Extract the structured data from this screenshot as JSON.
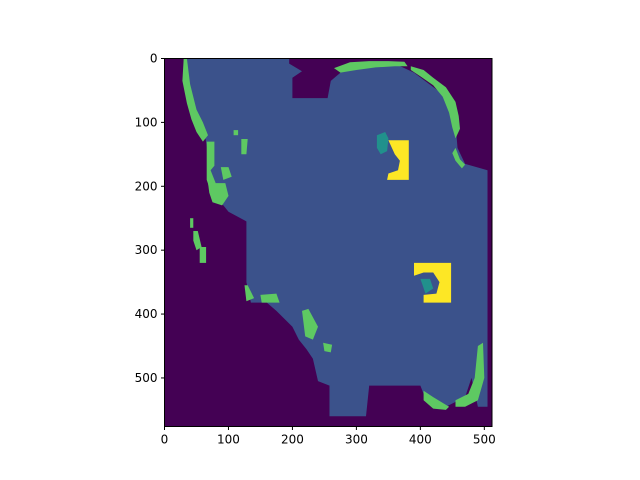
{
  "chart_data": {
    "type": "heatmap",
    "title": "",
    "xlabel": "",
    "ylabel": "",
    "xlim": [
      0,
      512
    ],
    "ylim": [
      576,
      0
    ],
    "xticks": [
      0,
      100,
      200,
      300,
      400,
      500
    ],
    "yticks": [
      0,
      100,
      200,
      300,
      400,
      500
    ],
    "grid": false,
    "colormap": "viridis",
    "classes": [
      {
        "value": 0,
        "color": "#440154"
      },
      {
        "value": 1,
        "color": "#3b528b"
      },
      {
        "value": 2,
        "color": "#21918c"
      },
      {
        "value": 3,
        "color": "#5ec962"
      },
      {
        "value": 4,
        "color": "#fde725"
      }
    ],
    "regions": [
      {
        "class": 1,
        "points": [
          [
            30,
            0
          ],
          [
            195,
            0
          ],
          [
            195,
            8
          ],
          [
            215,
            20
          ],
          [
            200,
            30
          ],
          [
            200,
            62
          ],
          [
            255,
            62
          ],
          [
            260,
            35
          ],
          [
            280,
            18
          ],
          [
            310,
            12
          ],
          [
            360,
            8
          ],
          [
            390,
            22
          ],
          [
            430,
            52
          ],
          [
            450,
            70
          ],
          [
            455,
            100
          ],
          [
            458,
            140
          ],
          [
            470,
            165
          ],
          [
            505,
            175
          ],
          [
            505,
            545
          ],
          [
            490,
            545
          ],
          [
            480,
            500
          ],
          [
            470,
            530
          ],
          [
            440,
            545
          ],
          [
            420,
            540
          ],
          [
            405,
            525
          ],
          [
            400,
            512
          ],
          [
            320,
            512
          ],
          [
            315,
            560
          ],
          [
            258,
            560
          ],
          [
            258,
            512
          ],
          [
            240,
            505
          ],
          [
            232,
            470
          ],
          [
            222,
            455
          ],
          [
            210,
            440
          ],
          [
            200,
            420
          ],
          [
            175,
            395
          ],
          [
            160,
            382
          ],
          [
            135,
            382
          ],
          [
            128,
            350
          ],
          [
            128,
            255
          ],
          [
            100,
            240
          ],
          [
            80,
            215
          ],
          [
            75,
            200
          ],
          [
            70,
            165
          ],
          [
            65,
            130
          ],
          [
            58,
            100
          ],
          [
            45,
            85
          ],
          [
            32,
            35
          ],
          [
            30,
            10
          ]
        ]
      },
      {
        "class": 3,
        "points": [
          [
            30,
            0
          ],
          [
            35,
            0
          ],
          [
            40,
            40
          ],
          [
            50,
            80
          ],
          [
            60,
            100
          ],
          [
            68,
            120
          ],
          [
            60,
            130
          ],
          [
            50,
            115
          ],
          [
            42,
            95
          ],
          [
            35,
            70
          ],
          [
            28,
            35
          ]
        ]
      },
      {
        "class": 3,
        "points": [
          [
            265,
            15
          ],
          [
            290,
            6
          ],
          [
            320,
            4
          ],
          [
            350,
            4
          ],
          [
            375,
            5
          ],
          [
            380,
            12
          ],
          [
            360,
            12
          ],
          [
            330,
            14
          ],
          [
            300,
            18
          ],
          [
            275,
            22
          ]
        ]
      },
      {
        "class": 3,
        "points": [
          [
            385,
            12
          ],
          [
            405,
            18
          ],
          [
            420,
            30
          ],
          [
            440,
            45
          ],
          [
            455,
            68
          ],
          [
            460,
            90
          ],
          [
            462,
            110
          ],
          [
            455,
            125
          ],
          [
            450,
            108
          ],
          [
            445,
            85
          ],
          [
            435,
            60
          ],
          [
            420,
            42
          ],
          [
            400,
            28
          ],
          [
            385,
            18
          ]
        ]
      },
      {
        "class": 3,
        "points": [
          [
            455,
            140
          ],
          [
            462,
            158
          ],
          [
            470,
            166
          ],
          [
            465,
            172
          ],
          [
            455,
            160
          ],
          [
            450,
            148
          ]
        ]
      },
      {
        "class": 3,
        "points": [
          [
            66,
            130
          ],
          [
            78,
            130
          ],
          [
            78,
            168
          ],
          [
            72,
            175
          ],
          [
            80,
            195
          ],
          [
            72,
            208
          ],
          [
            66,
            190
          ],
          [
            66,
            160
          ]
        ]
      },
      {
        "class": 3,
        "points": [
          [
            108,
            112
          ],
          [
            115,
            112
          ],
          [
            115,
            120
          ],
          [
            108,
            120
          ]
        ]
      },
      {
        "class": 3,
        "points": [
          [
            120,
            126
          ],
          [
            130,
            126
          ],
          [
            128,
            150
          ],
          [
            120,
            150
          ]
        ]
      },
      {
        "class": 3,
        "points": [
          [
            88,
            170
          ],
          [
            100,
            170
          ],
          [
            105,
            185
          ],
          [
            92,
            190
          ]
        ]
      },
      {
        "class": 3,
        "points": [
          [
            68,
            195
          ],
          [
            95,
            195
          ],
          [
            100,
            215
          ],
          [
            90,
            230
          ],
          [
            75,
            225
          ],
          [
            70,
            210
          ]
        ]
      },
      {
        "class": 3,
        "points": [
          [
            40,
            250
          ],
          [
            45,
            250
          ],
          [
            45,
            265
          ],
          [
            40,
            265
          ]
        ]
      },
      {
        "class": 3,
        "points": [
          [
            45,
            270
          ],
          [
            52,
            270
          ],
          [
            58,
            295
          ],
          [
            50,
            300
          ],
          [
            45,
            285
          ]
        ]
      },
      {
        "class": 3,
        "points": [
          [
            55,
            295
          ],
          [
            65,
            295
          ],
          [
            65,
            320
          ],
          [
            55,
            320
          ]
        ]
      },
      {
        "class": 3,
        "points": [
          [
            125,
            355
          ],
          [
            130,
            355
          ],
          [
            140,
            375
          ],
          [
            128,
            380
          ]
        ]
      },
      {
        "class": 3,
        "points": [
          [
            150,
            370
          ],
          [
            175,
            368
          ],
          [
            180,
            382
          ],
          [
            152,
            382
          ]
        ]
      },
      {
        "class": 3,
        "points": [
          [
            215,
            395
          ],
          [
            225,
            392
          ],
          [
            240,
            420
          ],
          [
            232,
            440
          ],
          [
            220,
            435
          ]
        ]
      },
      {
        "class": 3,
        "points": [
          [
            248,
            445
          ],
          [
            262,
            448
          ],
          [
            260,
            460
          ],
          [
            250,
            458
          ]
        ]
      },
      {
        "class": 3,
        "points": [
          [
            405,
            520
          ],
          [
            420,
            530
          ],
          [
            445,
            545
          ],
          [
            440,
            550
          ],
          [
            420,
            548
          ],
          [
            405,
            535
          ]
        ]
      },
      {
        "class": 3,
        "points": [
          [
            455,
            535
          ],
          [
            475,
            525
          ],
          [
            485,
            500
          ],
          [
            490,
            450
          ],
          [
            498,
            445
          ],
          [
            500,
            500
          ],
          [
            490,
            535
          ],
          [
            470,
            545
          ],
          [
            455,
            545
          ]
        ]
      },
      {
        "class": 4,
        "points": [
          [
            350,
            128
          ],
          [
            382,
            128
          ],
          [
            382,
            190
          ],
          [
            348,
            190
          ],
          [
            350,
            180
          ],
          [
            365,
            175
          ],
          [
            368,
            160
          ],
          [
            360,
            150
          ]
        ]
      },
      {
        "class": 4,
        "points": [
          [
            390,
            320
          ],
          [
            448,
            320
          ],
          [
            448,
            382
          ],
          [
            405,
            382
          ],
          [
            405,
            370
          ],
          [
            425,
            368
          ],
          [
            430,
            350
          ],
          [
            420,
            335
          ],
          [
            405,
            335
          ],
          [
            390,
            340
          ]
        ]
      },
      {
        "class": 2,
        "points": [
          [
            332,
            120
          ],
          [
            345,
            115
          ],
          [
            350,
            125
          ],
          [
            348,
            145
          ],
          [
            338,
            150
          ],
          [
            332,
            140
          ]
        ]
      },
      {
        "class": 2,
        "points": [
          [
            400,
            345
          ],
          [
            415,
            345
          ],
          [
            420,
            360
          ],
          [
            408,
            368
          ]
        ]
      }
    ]
  }
}
